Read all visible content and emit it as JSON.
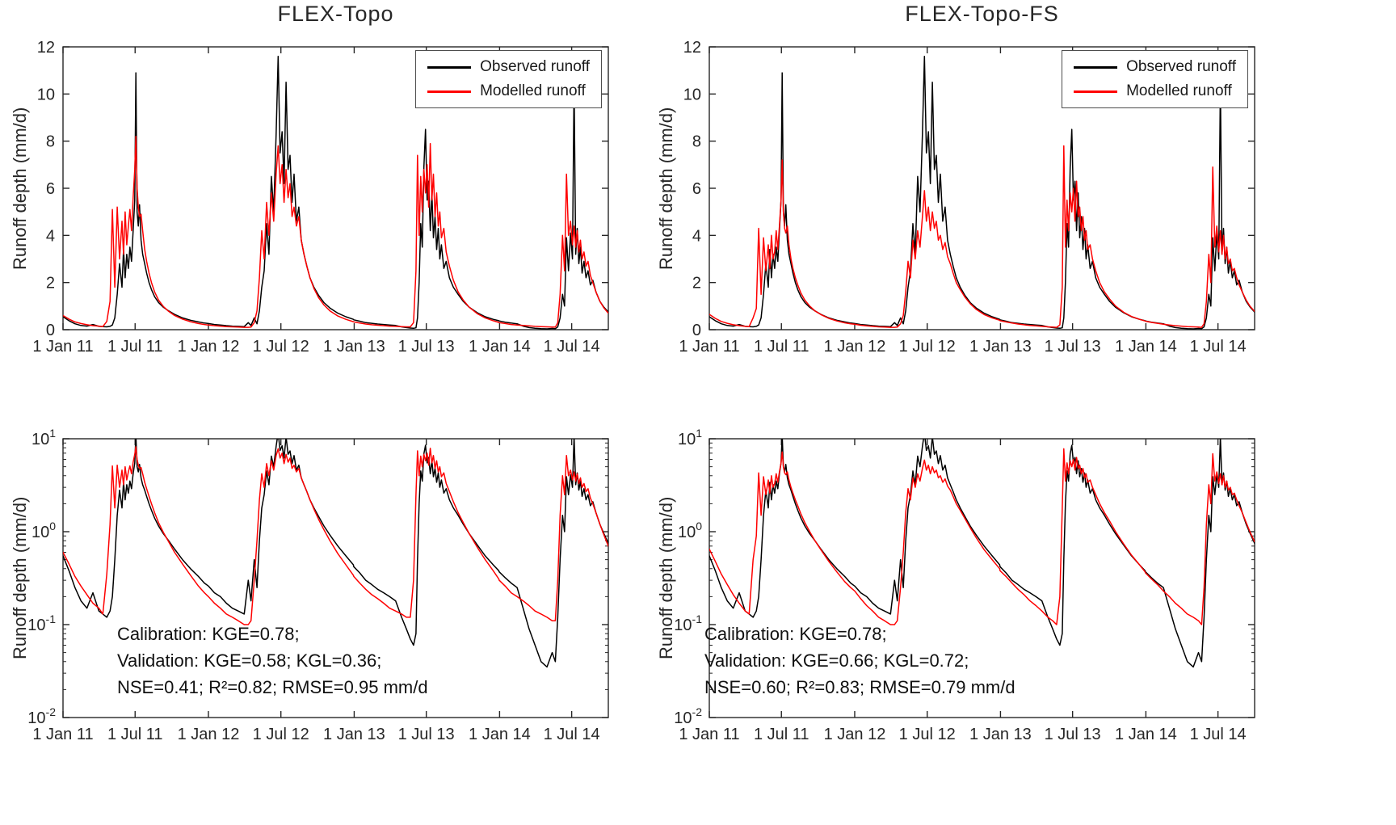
{
  "figure": {
    "background": "#ffffff",
    "ylabel": "Runoff depth (mm/d)",
    "x_tick_labels": [
      "1 Jan 11",
      "1 Jul 11",
      "1 Jan 12",
      "1 Jul 12",
      "1 Jan 13",
      "1 Jul 13",
      "1 Jan 14",
      "1 Jul 14"
    ],
    "x_tick_days": [
      0,
      181,
      365,
      547,
      731,
      912,
      1096,
      1277
    ],
    "x_range": [
      0,
      1369
    ],
    "legend": {
      "observed": "Observed runoff",
      "modelled": "Modelled runoff"
    },
    "colors": {
      "observed": "#000000",
      "modelled": "#ff0000",
      "axis": "#262626"
    }
  },
  "chart_data": {
    "type": "line",
    "x_unit": "days since 1 Jan 2011",
    "series_columns": {
      "observed": 1,
      "modelled_flex_topo": 2,
      "modelled_flex_topo_fs": 3
    },
    "panels": [
      {
        "id": "tl",
        "title": "FLEX-Topo",
        "y_scale": "linear",
        "y_ticks": [
          0,
          2,
          4,
          6,
          8,
          10,
          12
        ],
        "y_range": [
          0,
          12
        ],
        "series": [
          "observed",
          "modelled_flex_topo"
        ],
        "legend_visible": true
      },
      {
        "id": "tr",
        "title": "FLEX-Topo-FS",
        "y_scale": "linear",
        "y_ticks": [
          0,
          2,
          4,
          6,
          8,
          10,
          12
        ],
        "y_range": [
          0,
          12
        ],
        "series": [
          "observed",
          "modelled_flex_topo_fs"
        ],
        "legend_visible": true
      },
      {
        "id": "bl",
        "title": "",
        "y_scale": "log",
        "y_tick_exponents": [
          -2,
          -1,
          0,
          1
        ],
        "y_range": [
          0.01,
          10
        ],
        "series": [
          "observed",
          "modelled_flex_topo"
        ],
        "annotation": [
          "Calibration: KGE=0.78;",
          "Validation: KGE=0.58; KGL=0.36;",
          "NSE=0.41; R²=0.82; RMSE=0.95 mm/d"
        ]
      },
      {
        "id": "br",
        "title": "",
        "y_scale": "log",
        "y_tick_exponents": [
          -2,
          -1,
          0,
          1
        ],
        "y_range": [
          0.01,
          10
        ],
        "series": [
          "observed",
          "modelled_flex_topo_fs"
        ],
        "annotation": [
          "Calibration: KGE=0.78;",
          "Validation: KGE=0.66; KGL=0.72;",
          "NSE=0.60; R²=0.83; RMSE=0.79 mm/d"
        ]
      }
    ],
    "points": [
      [
        0,
        0.55,
        0.6,
        0.65
      ],
      [
        15,
        0.38,
        0.45,
        0.48
      ],
      [
        30,
        0.25,
        0.33,
        0.35
      ],
      [
        45,
        0.18,
        0.26,
        0.27
      ],
      [
        60,
        0.15,
        0.21,
        0.21
      ],
      [
        75,
        0.22,
        0.17,
        0.17
      ],
      [
        90,
        0.14,
        0.15,
        0.14
      ],
      [
        100,
        0.13,
        0.13,
        0.13
      ],
      [
        110,
        0.12,
        0.35,
        0.5
      ],
      [
        118,
        0.14,
        1.2,
        0.9
      ],
      [
        124,
        0.2,
        5.1,
        4.3
      ],
      [
        130,
        0.5,
        1.8,
        1.5
      ],
      [
        136,
        1.5,
        5.2,
        3.9
      ],
      [
        142,
        2.8,
        3.0,
        2.5
      ],
      [
        148,
        1.8,
        4.6,
        3.6
      ],
      [
        152,
        3.4,
        3.2,
        2.6
      ],
      [
        156,
        2.2,
        5.0,
        4.0
      ],
      [
        160,
        3.2,
        3.6,
        3.0
      ],
      [
        164,
        2.6,
        4.4,
        3.3
      ],
      [
        168,
        3.5,
        5.1,
        4.2
      ],
      [
        172,
        2.9,
        4.2,
        3.4
      ],
      [
        176,
        4.2,
        5.6,
        4.4
      ],
      [
        180,
        5.5,
        6.8,
        5.5
      ],
      [
        183,
        10.9,
        8.2,
        7.2
      ],
      [
        186,
        5.0,
        6.0,
        5.0
      ],
      [
        189,
        4.4,
        5.2,
        4.3
      ],
      [
        192,
        5.3,
        4.8,
        4.1
      ],
      [
        196,
        3.8,
        4.9,
        4.4
      ],
      [
        200,
        3.2,
        4.2,
        3.6
      ],
      [
        205,
        2.8,
        3.4,
        3.0
      ],
      [
        210,
        2.4,
        2.9,
        2.6
      ],
      [
        216,
        2.0,
        2.4,
        2.2
      ],
      [
        222,
        1.7,
        2.0,
        1.9
      ],
      [
        230,
        1.4,
        1.6,
        1.55
      ],
      [
        240,
        1.15,
        1.25,
        1.25
      ],
      [
        252,
        0.95,
        0.98,
        1.0
      ],
      [
        265,
        0.8,
        0.78,
        0.8
      ],
      [
        280,
        0.65,
        0.6,
        0.64
      ],
      [
        300,
        0.5,
        0.45,
        0.48
      ],
      [
        320,
        0.4,
        0.34,
        0.37
      ],
      [
        340,
        0.33,
        0.26,
        0.29
      ],
      [
        355,
        0.28,
        0.22,
        0.25
      ],
      [
        365,
        0.26,
        0.2,
        0.23
      ],
      [
        380,
        0.22,
        0.17,
        0.19
      ],
      [
        395,
        0.2,
        0.15,
        0.16
      ],
      [
        410,
        0.17,
        0.13,
        0.14
      ],
      [
        425,
        0.15,
        0.12,
        0.12
      ],
      [
        440,
        0.14,
        0.11,
        0.11
      ],
      [
        455,
        0.13,
        0.1,
        0.1
      ],
      [
        465,
        0.3,
        0.1,
        0.1
      ],
      [
        472,
        0.18,
        0.11,
        0.11
      ],
      [
        480,
        0.5,
        0.3,
        0.25
      ],
      [
        487,
        0.25,
        0.8,
        0.6
      ],
      [
        493,
        0.8,
        2.2,
        1.6
      ],
      [
        499,
        1.8,
        4.2,
        2.9
      ],
      [
        505,
        2.5,
        3.0,
        2.2
      ],
      [
        511,
        4.5,
        5.4,
        3.8
      ],
      [
        517,
        3.2,
        4.0,
        3.0
      ],
      [
        523,
        6.5,
        5.8,
        4.2
      ],
      [
        529,
        5.0,
        4.6,
        3.5
      ],
      [
        535,
        8.3,
        6.6,
        4.8
      ],
      [
        540,
        11.6,
        7.8,
        5.9
      ],
      [
        545,
        7.5,
        6.2,
        4.6
      ],
      [
        550,
        8.4,
        7.0,
        5.2
      ],
      [
        555,
        6.2,
        5.4,
        4.2
      ],
      [
        560,
        10.5,
        6.8,
        5.0
      ],
      [
        565,
        6.8,
        5.6,
        4.3
      ],
      [
        570,
        7.4,
        6.2,
        4.6
      ],
      [
        575,
        5.4,
        4.8,
        3.8
      ],
      [
        580,
        6.6,
        5.2,
        4.0
      ],
      [
        586,
        4.6,
        4.4,
        3.4
      ],
      [
        592,
        5.2,
        4.8,
        3.7
      ],
      [
        598,
        3.8,
        3.8,
        3.1
      ],
      [
        605,
        3.2,
        3.2,
        2.8
      ],
      [
        612,
        2.7,
        2.7,
        2.4
      ],
      [
        620,
        2.2,
        2.2,
        2.0
      ],
      [
        630,
        1.8,
        1.75,
        1.7
      ],
      [
        642,
        1.45,
        1.35,
        1.38
      ],
      [
        655,
        1.15,
        1.05,
        1.1
      ],
      [
        670,
        0.92,
        0.8,
        0.86
      ],
      [
        690,
        0.7,
        0.58,
        0.64
      ],
      [
        710,
        0.55,
        0.44,
        0.5
      ],
      [
        729,
        0.44,
        0.34,
        0.4
      ],
      [
        730,
        0.42,
        0.33,
        0.38
      ],
      [
        745,
        0.36,
        0.28,
        0.33
      ],
      [
        760,
        0.3,
        0.24,
        0.28
      ],
      [
        775,
        0.27,
        0.21,
        0.24
      ],
      [
        790,
        0.24,
        0.19,
        0.21
      ],
      [
        805,
        0.22,
        0.17,
        0.18
      ],
      [
        820,
        0.2,
        0.15,
        0.16
      ],
      [
        835,
        0.18,
        0.14,
        0.14
      ],
      [
        850,
        0.12,
        0.13,
        0.12
      ],
      [
        862,
        0.09,
        0.12,
        0.11
      ],
      [
        872,
        0.07,
        0.12,
        0.1
      ],
      [
        880,
        0.06,
        0.3,
        0.2
      ],
      [
        886,
        0.08,
        2.5,
        1.8
      ],
      [
        890,
        0.5,
        7.4,
        7.8
      ],
      [
        894,
        2.0,
        4.0,
        3.5
      ],
      [
        898,
        4.5,
        6.5,
        5.5
      ],
      [
        902,
        3.5,
        5.0,
        4.2
      ],
      [
        906,
        6.9,
        6.8,
        5.8
      ],
      [
        910,
        8.5,
        5.8,
        5.0
      ],
      [
        914,
        5.5,
        7.0,
        6.0
      ],
      [
        918,
        6.3,
        5.2,
        4.6
      ],
      [
        922,
        4.2,
        7.9,
        6.3
      ],
      [
        926,
        5.8,
        5.5,
        4.8
      ],
      [
        930,
        3.9,
        6.6,
        5.2
      ],
      [
        934,
        4.8,
        4.8,
        4.2
      ],
      [
        938,
        3.4,
        5.8,
        4.8
      ],
      [
        942,
        4.3,
        4.4,
        3.8
      ],
      [
        946,
        3.0,
        5.0,
        4.2
      ],
      [
        950,
        3.6,
        3.9,
        3.4
      ],
      [
        956,
        2.6,
        4.3,
        3.6
      ],
      [
        962,
        2.9,
        3.3,
        3.0
      ],
      [
        970,
        2.2,
        2.7,
        2.5
      ],
      [
        980,
        1.8,
        2.1,
        2.0
      ],
      [
        992,
        1.5,
        1.6,
        1.6
      ],
      [
        1005,
        1.2,
        1.25,
        1.3
      ],
      [
        1020,
        0.95,
        0.95,
        1.0
      ],
      [
        1040,
        0.72,
        0.68,
        0.74
      ],
      [
        1060,
        0.55,
        0.5,
        0.56
      ],
      [
        1080,
        0.44,
        0.38,
        0.44
      ],
      [
        1094,
        0.38,
        0.31,
        0.37
      ],
      [
        1095,
        0.37,
        0.3,
        0.36
      ],
      [
        1110,
        0.32,
        0.26,
        0.31
      ],
      [
        1125,
        0.28,
        0.22,
        0.27
      ],
      [
        1140,
        0.25,
        0.2,
        0.23
      ],
      [
        1155,
        0.15,
        0.18,
        0.2
      ],
      [
        1170,
        0.09,
        0.16,
        0.17
      ],
      [
        1185,
        0.06,
        0.14,
        0.15
      ],
      [
        1200,
        0.04,
        0.13,
        0.13
      ],
      [
        1215,
        0.035,
        0.12,
        0.12
      ],
      [
        1228,
        0.05,
        0.11,
        0.11
      ],
      [
        1236,
        0.04,
        0.11,
        0.1
      ],
      [
        1242,
        0.12,
        0.3,
        0.25
      ],
      [
        1248,
        0.5,
        1.5,
        1.2
      ],
      [
        1254,
        1.5,
        4.0,
        3.2
      ],
      [
        1259,
        1.0,
        2.5,
        2.0
      ],
      [
        1264,
        3.9,
        6.6,
        6.9
      ],
      [
        1269,
        2.5,
        4.0,
        3.5
      ],
      [
        1274,
        4.1,
        4.6,
        4.4
      ],
      [
        1279,
        3.0,
        3.6,
        3.3
      ],
      [
        1283,
        10.5,
        4.4,
        4.2
      ],
      [
        1287,
        3.2,
        3.5,
        3.2
      ],
      [
        1291,
        4.3,
        4.2,
        4.0
      ],
      [
        1295,
        2.8,
        3.3,
        3.0
      ],
      [
        1299,
        3.5,
        3.8,
        3.5
      ],
      [
        1303,
        2.4,
        3.0,
        2.8
      ],
      [
        1308,
        2.9,
        3.3,
        3.0
      ],
      [
        1313,
        2.2,
        2.7,
        2.5
      ],
      [
        1318,
        2.5,
        2.9,
        2.6
      ],
      [
        1324,
        1.9,
        2.3,
        2.2
      ],
      [
        1330,
        2.1,
        2.0,
        1.9
      ],
      [
        1338,
        1.6,
        1.6,
        1.6
      ],
      [
        1348,
        1.2,
        1.2,
        1.25
      ],
      [
        1358,
        0.95,
        0.92,
        0.98
      ],
      [
        1369,
        0.75,
        0.7,
        0.78
      ]
    ]
  }
}
